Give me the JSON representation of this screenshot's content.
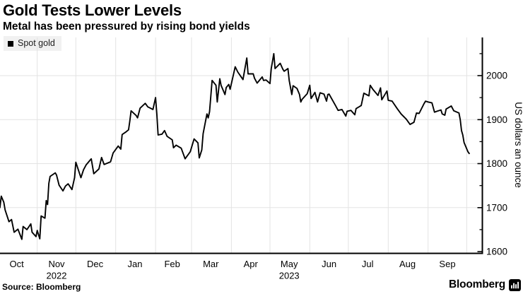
{
  "header": {
    "title": "Gold Tests Lower Levels",
    "subtitle": "Metal has been pressured by rising bond yields"
  },
  "legend": {
    "items": [
      {
        "label": "Spot gold",
        "color": "#000000"
      }
    ]
  },
  "chart_data": {
    "type": "line",
    "title": "Gold Tests Lower Levels",
    "subtitle": "Metal has been pressured by rising bond yields",
    "ylabel": "US dollars an ounce",
    "xlabel": "",
    "ylim": [
      1600,
      2083
    ],
    "grid": true,
    "legend_position": "top-left",
    "y_major_ticks": [
      1600,
      1700,
      1800,
      1900,
      2000
    ],
    "y_minor_ticks": [
      1650,
      1750,
      1850,
      1950,
      2050
    ],
    "y_gridlines": [
      1700,
      1800,
      1900,
      2000
    ],
    "x_month_boundaries": [
      "2022-11-01",
      "2022-12-01",
      "2023-01-01",
      "2023-02-01",
      "2023-03-01",
      "2023-04-01",
      "2023-05-01",
      "2023-06-01",
      "2023-07-01",
      "2023-08-01",
      "2023-09-01",
      "2023-10-01"
    ],
    "x_month_labels": [
      {
        "label": "Oct",
        "center": "2022-10-16"
      },
      {
        "label": "Nov",
        "center": "2022-11-16"
      },
      {
        "label": "Dec",
        "center": "2022-12-16"
      },
      {
        "label": "Jan",
        "center": "2023-01-16"
      },
      {
        "label": "Feb",
        "center": "2023-02-14"
      },
      {
        "label": "Mar",
        "center": "2023-03-16"
      },
      {
        "label": "Apr",
        "center": "2023-04-16"
      },
      {
        "label": "May",
        "center": "2023-05-16"
      },
      {
        "label": "Jun",
        "center": "2023-06-16"
      },
      {
        "label": "Jul",
        "center": "2023-07-16"
      },
      {
        "label": "Aug",
        "center": "2023-08-16"
      },
      {
        "label": "Sep",
        "center": "2023-09-16"
      }
    ],
    "x_year_labels": [
      {
        "label": "2022",
        "center": "2022-11-16"
      },
      {
        "label": "2023",
        "center": "2023-05-16"
      }
    ],
    "series": [
      {
        "name": "Spot gold",
        "color": "#000000",
        "points": [
          [
            "2022-10-03",
            1700
          ],
          [
            "2022-10-04",
            1726
          ],
          [
            "2022-10-06",
            1712
          ],
          [
            "2022-10-07",
            1695
          ],
          [
            "2022-10-10",
            1668
          ],
          [
            "2022-10-12",
            1673
          ],
          [
            "2022-10-14",
            1644
          ],
          [
            "2022-10-17",
            1651
          ],
          [
            "2022-10-20",
            1628
          ],
          [
            "2022-10-21",
            1657
          ],
          [
            "2022-10-24",
            1650
          ],
          [
            "2022-10-27",
            1663
          ],
          [
            "2022-10-28",
            1644
          ],
          [
            "2022-10-31",
            1634
          ],
          [
            "2022-11-01",
            1648
          ],
          [
            "2022-11-03",
            1629
          ],
          [
            "2022-11-04",
            1681
          ],
          [
            "2022-11-07",
            1676
          ],
          [
            "2022-11-08",
            1716
          ],
          [
            "2022-11-09",
            1707
          ],
          [
            "2022-11-10",
            1755
          ],
          [
            "2022-11-11",
            1771
          ],
          [
            "2022-11-15",
            1779
          ],
          [
            "2022-11-16",
            1774
          ],
          [
            "2022-11-18",
            1751
          ],
          [
            "2022-11-21",
            1738
          ],
          [
            "2022-11-23",
            1749
          ],
          [
            "2022-11-25",
            1754
          ],
          [
            "2022-11-28",
            1741
          ],
          [
            "2022-11-30",
            1768
          ],
          [
            "2022-12-01",
            1803
          ],
          [
            "2022-12-05",
            1768
          ],
          [
            "2022-12-07",
            1786
          ],
          [
            "2022-12-09",
            1797
          ],
          [
            "2022-12-13",
            1811
          ],
          [
            "2022-12-15",
            1777
          ],
          [
            "2022-12-19",
            1788
          ],
          [
            "2022-12-21",
            1814
          ],
          [
            "2022-12-23",
            1798
          ],
          [
            "2022-12-28",
            1804
          ],
          [
            "2022-12-30",
            1824
          ],
          [
            "2023-01-03",
            1840
          ],
          [
            "2023-01-05",
            1833
          ],
          [
            "2023-01-06",
            1866
          ],
          [
            "2023-01-09",
            1872
          ],
          [
            "2023-01-11",
            1877
          ],
          [
            "2023-01-12",
            1897
          ],
          [
            "2023-01-13",
            1920
          ],
          [
            "2023-01-17",
            1909
          ],
          [
            "2023-01-18",
            1904
          ],
          [
            "2023-01-20",
            1926
          ],
          [
            "2023-01-24",
            1937
          ],
          [
            "2023-01-26",
            1929
          ],
          [
            "2023-01-30",
            1923
          ],
          [
            "2023-02-01",
            1950
          ],
          [
            "2023-02-02",
            1913
          ],
          [
            "2023-02-03",
            1865
          ],
          [
            "2023-02-06",
            1867
          ],
          [
            "2023-02-08",
            1875
          ],
          [
            "2023-02-10",
            1862
          ],
          [
            "2023-02-14",
            1854
          ],
          [
            "2023-02-15",
            1836
          ],
          [
            "2023-02-17",
            1842
          ],
          [
            "2023-02-21",
            1835
          ],
          [
            "2023-02-24",
            1811
          ],
          [
            "2023-02-28",
            1827
          ],
          [
            "2023-03-03",
            1856
          ],
          [
            "2023-03-06",
            1847
          ],
          [
            "2023-03-07",
            1813
          ],
          [
            "2023-03-09",
            1831
          ],
          [
            "2023-03-10",
            1868
          ],
          [
            "2023-03-13",
            1913
          ],
          [
            "2023-03-14",
            1904
          ],
          [
            "2023-03-15",
            1918
          ],
          [
            "2023-03-17",
            1989
          ],
          [
            "2023-03-20",
            1978
          ],
          [
            "2023-03-21",
            1940
          ],
          [
            "2023-03-23",
            1993
          ],
          [
            "2023-03-24",
            1978
          ],
          [
            "2023-03-27",
            1957
          ],
          [
            "2023-03-28",
            1973
          ],
          [
            "2023-03-30",
            1980
          ],
          [
            "2023-03-31",
            1969
          ],
          [
            "2023-04-04",
            2020
          ],
          [
            "2023-04-06",
            2008
          ],
          [
            "2023-04-10",
            1991
          ],
          [
            "2023-04-13",
            2040
          ],
          [
            "2023-04-14",
            2004
          ],
          [
            "2023-04-18",
            2004
          ],
          [
            "2023-04-19",
            1994
          ],
          [
            "2023-04-21",
            1983
          ],
          [
            "2023-04-25",
            1997
          ],
          [
            "2023-04-26",
            1989
          ],
          [
            "2023-04-28",
            1990
          ],
          [
            "2023-05-01",
            1982
          ],
          [
            "2023-05-02",
            2016
          ],
          [
            "2023-05-04",
            2050
          ],
          [
            "2023-05-05",
            2016
          ],
          [
            "2023-05-09",
            2028
          ],
          [
            "2023-05-11",
            2015
          ],
          [
            "2023-05-12",
            2010
          ],
          [
            "2023-05-15",
            2016
          ],
          [
            "2023-05-16",
            1989
          ],
          [
            "2023-05-18",
            1957
          ],
          [
            "2023-05-19",
            1977
          ],
          [
            "2023-05-22",
            1971
          ],
          [
            "2023-05-24",
            1957
          ],
          [
            "2023-05-25",
            1940
          ],
          [
            "2023-05-26",
            1946
          ],
          [
            "2023-05-30",
            1959
          ],
          [
            "2023-06-01",
            1978
          ],
          [
            "2023-06-02",
            1948
          ],
          [
            "2023-06-05",
            1962
          ],
          [
            "2023-06-07",
            1940
          ],
          [
            "2023-06-09",
            1961
          ],
          [
            "2023-06-12",
            1958
          ],
          [
            "2023-06-14",
            1942
          ],
          [
            "2023-06-15",
            1957
          ],
          [
            "2023-06-16",
            1958
          ],
          [
            "2023-06-21",
            1932
          ],
          [
            "2023-06-23",
            1921
          ],
          [
            "2023-06-26",
            1923
          ],
          [
            "2023-06-29",
            1908
          ],
          [
            "2023-06-30",
            1919
          ],
          [
            "2023-07-03",
            1921
          ],
          [
            "2023-07-06",
            1911
          ],
          [
            "2023-07-07",
            1925
          ],
          [
            "2023-07-11",
            1932
          ],
          [
            "2023-07-13",
            1960
          ],
          [
            "2023-07-17",
            1954
          ],
          [
            "2023-07-18",
            1978
          ],
          [
            "2023-07-20",
            1969
          ],
          [
            "2023-07-24",
            1955
          ],
          [
            "2023-07-26",
            1972
          ],
          [
            "2023-07-27",
            1945
          ],
          [
            "2023-07-31",
            1965
          ],
          [
            "2023-08-01",
            1944
          ],
          [
            "2023-08-04",
            1942
          ],
          [
            "2023-08-08",
            1925
          ],
          [
            "2023-08-11",
            1913
          ],
          [
            "2023-08-15",
            1901
          ],
          [
            "2023-08-18",
            1889
          ],
          [
            "2023-08-21",
            1894
          ],
          [
            "2023-08-23",
            1915
          ],
          [
            "2023-08-25",
            1914
          ],
          [
            "2023-08-29",
            1937
          ],
          [
            "2023-08-30",
            1942
          ],
          [
            "2023-09-01",
            1940
          ],
          [
            "2023-09-04",
            1938
          ],
          [
            "2023-09-06",
            1917
          ],
          [
            "2023-09-08",
            1919
          ],
          [
            "2023-09-11",
            1922
          ],
          [
            "2023-09-12",
            1913
          ],
          [
            "2023-09-14",
            1910
          ],
          [
            "2023-09-15",
            1924
          ],
          [
            "2023-09-19",
            1931
          ],
          [
            "2023-09-21",
            1920
          ],
          [
            "2023-09-25",
            1915
          ],
          [
            "2023-09-26",
            1900
          ],
          [
            "2023-09-27",
            1875
          ],
          [
            "2023-09-28",
            1865
          ],
          [
            "2023-09-29",
            1848
          ],
          [
            "2023-10-02",
            1827
          ],
          [
            "2023-10-03",
            1823
          ]
        ]
      }
    ]
  },
  "footer": {
    "source": "Source: Bloomberg",
    "brand": "Bloomberg"
  },
  "colors": {
    "background": "#ffffff",
    "line": "#000000",
    "grid": "#e3e3e3",
    "axis": "#000000",
    "legend_bg": "#f1f1f1",
    "text": "#000000"
  }
}
